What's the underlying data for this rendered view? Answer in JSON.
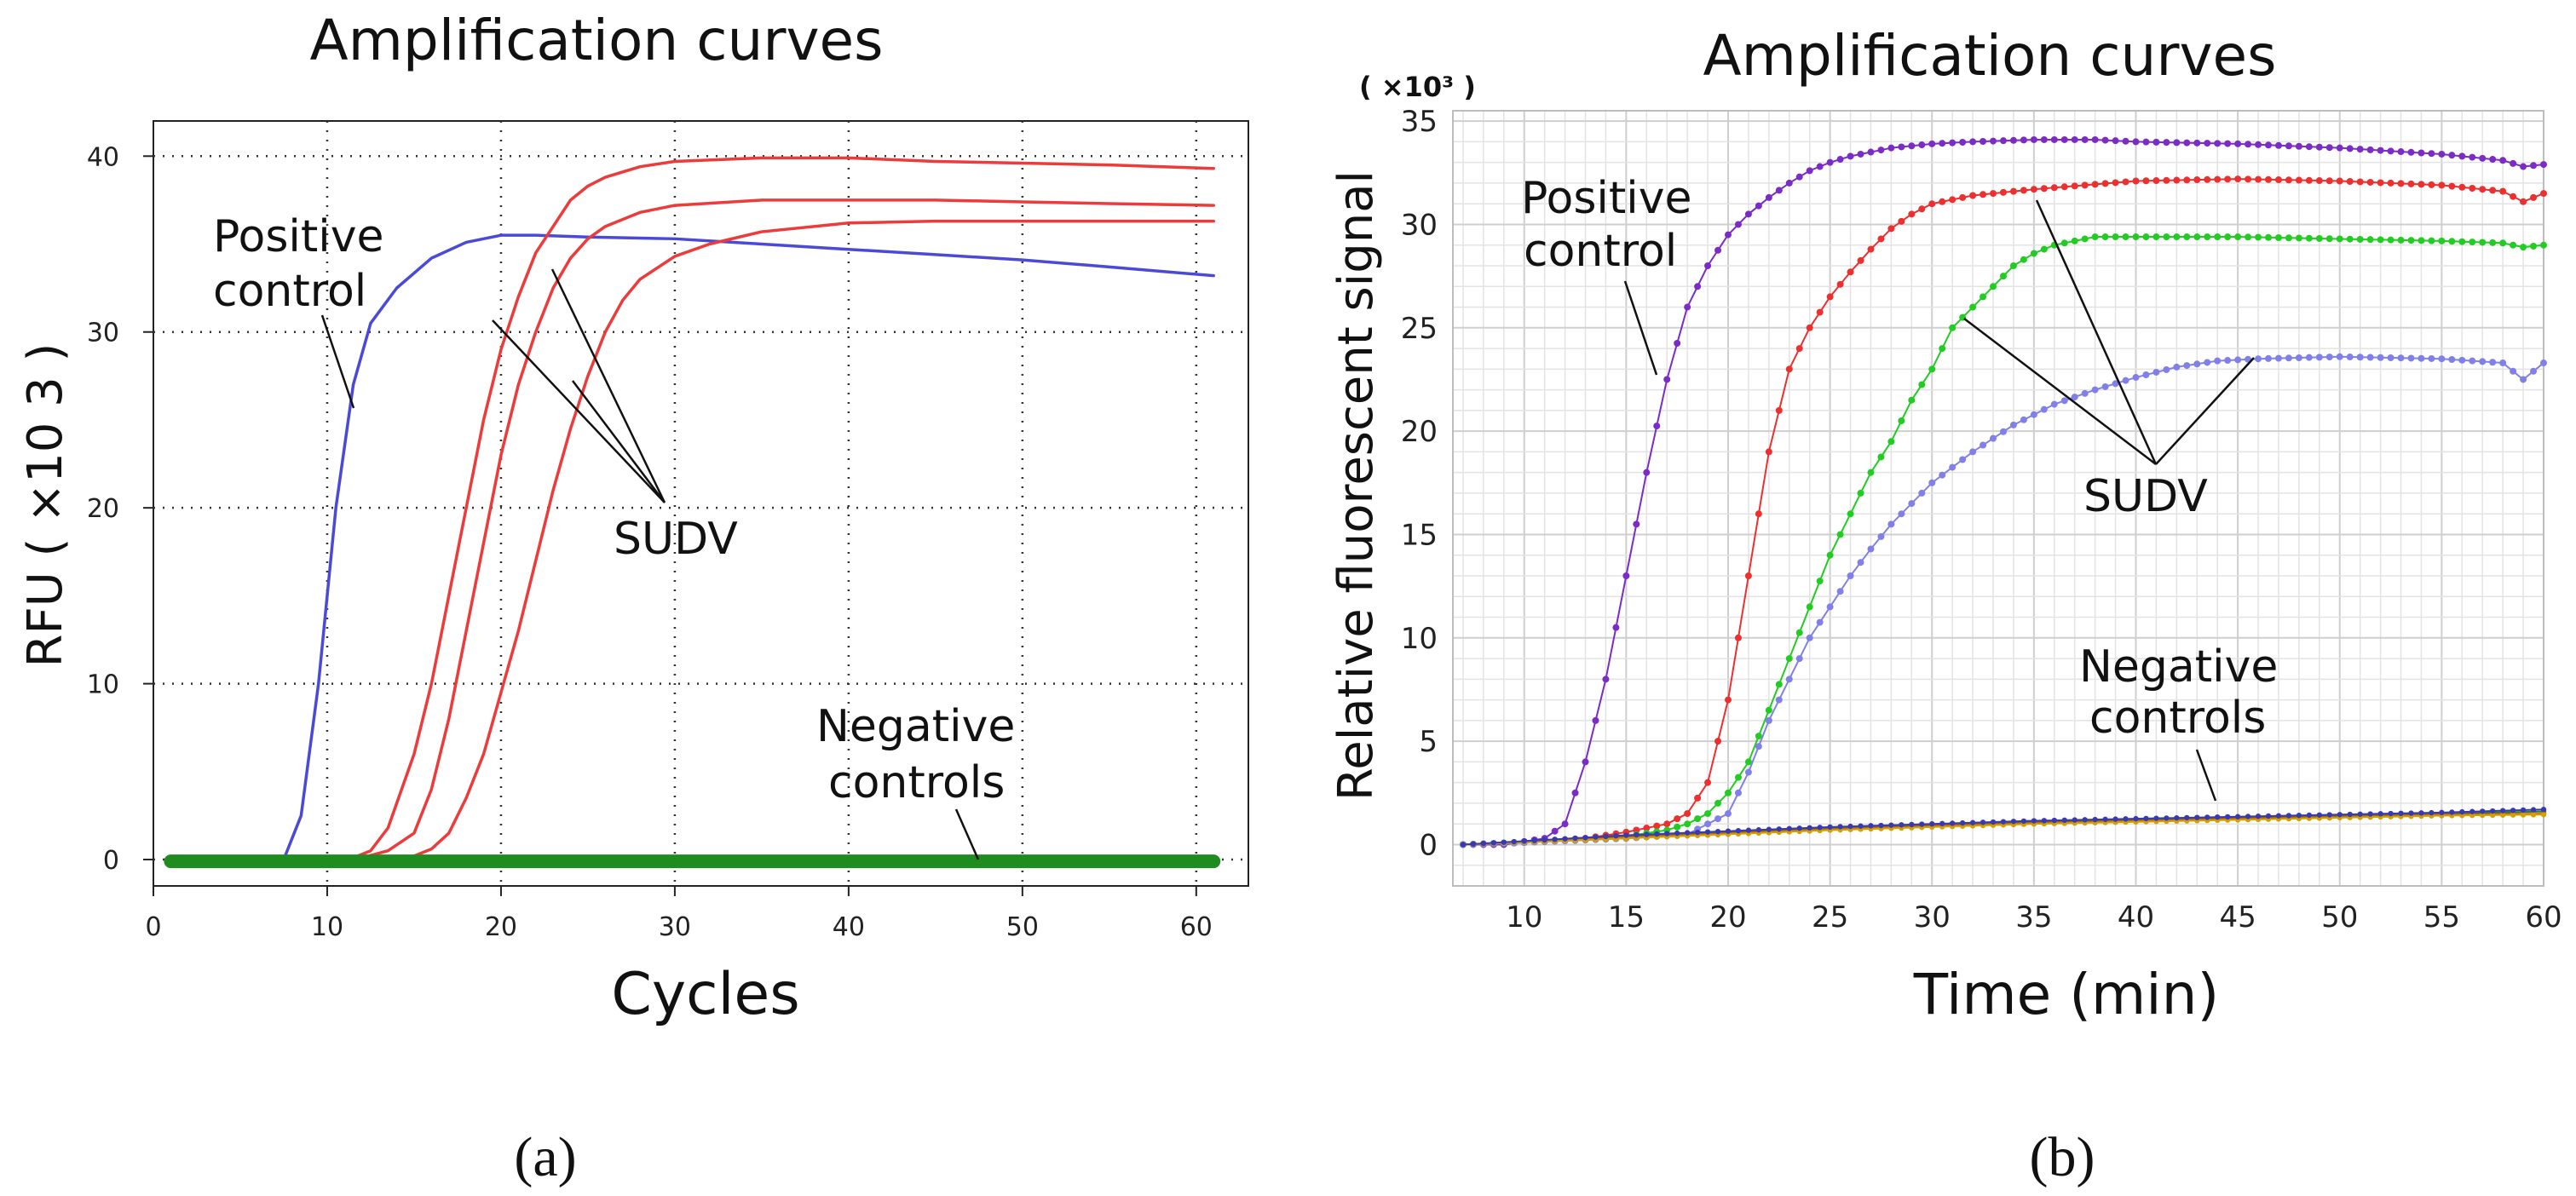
{
  "figure": {
    "panel_captions": [
      "(a)",
      "(b)"
    ]
  },
  "chart_data": [
    {
      "type": "line",
      "title": "Amplification curves",
      "xlabel": "Cycles",
      "ylabel": "RFU ( ×10 3 )",
      "xlim": [
        0,
        63
      ],
      "ylim": [
        -1.5,
        42
      ],
      "xticks": [
        0,
        10,
        20,
        30,
        40,
        50,
        60
      ],
      "yticks": [
        0,
        10,
        20,
        30,
        40
      ],
      "grid": true,
      "annotations": [
        {
          "lines": [
            "Positive",
            "control"
          ]
        },
        {
          "lines": [
            "SUDV"
          ]
        },
        {
          "lines": [
            "Negative",
            "controls"
          ]
        }
      ],
      "series": [
        {
          "color": "#4a4ad6",
          "x": [
            1,
            5,
            7.5,
            8.5,
            9.5,
            10.5,
            11.5,
            12.5,
            14,
            16,
            18,
            20,
            22,
            25,
            30,
            35,
            40,
            45,
            50,
            55,
            61
          ],
          "y": [
            0,
            0,
            0,
            2.5,
            10,
            20,
            27,
            30.5,
            32.5,
            34.2,
            35.1,
            35.5,
            35.5,
            35.4,
            35.3,
            35.0,
            34.7,
            34.4,
            34.1,
            33.7,
            33.2
          ]
        },
        {
          "color": "#ec3b3b",
          "x": [
            1,
            5,
            10,
            11.5,
            12.5,
            13.5,
            15,
            16,
            17,
            18,
            19,
            20,
            21,
            22,
            23,
            24,
            25,
            26,
            28,
            30,
            35,
            40,
            45,
            50,
            55,
            61
          ],
          "y": [
            0.1,
            0.1,
            0.1,
            0.1,
            0.5,
            1.8,
            6,
            10,
            15,
            20,
            25,
            29,
            32,
            34.5,
            36,
            37.5,
            38.3,
            38.8,
            39.4,
            39.7,
            39.9,
            39.9,
            39.7,
            39.6,
            39.5,
            39.3
          ]
        },
        {
          "color": "#ec3b3b",
          "x": [
            1,
            5,
            10,
            12,
            13.5,
            15,
            16,
            17,
            18,
            19,
            20,
            21,
            22,
            23,
            24,
            25,
            26,
            28,
            30,
            35,
            40,
            45,
            50,
            55,
            61
          ],
          "y": [
            0.1,
            0.1,
            0.1,
            0.1,
            0.5,
            1.5,
            4,
            8,
            13,
            18,
            23,
            27,
            30,
            32.5,
            34.2,
            35.3,
            36,
            36.8,
            37.2,
            37.5,
            37.5,
            37.5,
            37.4,
            37.3,
            37.2
          ]
        },
        {
          "color": "#ec3b3b",
          "x": [
            1,
            5,
            10,
            14,
            15,
            16,
            17,
            18,
            19,
            20,
            21,
            22,
            23,
            24,
            25,
            26,
            27,
            28,
            30,
            32,
            35,
            40,
            45,
            50,
            55,
            61
          ],
          "y": [
            0,
            0,
            0,
            0,
            0.2,
            0.6,
            1.5,
            3.5,
            6,
            9.5,
            13,
            17,
            21,
            24.5,
            27.5,
            30,
            31.8,
            33,
            34.3,
            35,
            35.7,
            36.2,
            36.3,
            36.3,
            36.3,
            36.3
          ]
        },
        {
          "color": "#1e8c1e",
          "x": [
            1,
            61
          ],
          "y": [
            -0.1,
            -0.1
          ]
        }
      ]
    },
    {
      "type": "line",
      "title": "Amplification curves",
      "xlabel": "Time (min)",
      "ylabel": "Relative fluorescent signal",
      "y_multiplier_label": "( ×10³ )",
      "xlim": [
        6.5,
        60
      ],
      "ylim": [
        -2,
        35.5
      ],
      "xticks": [
        10,
        15,
        20,
        25,
        30,
        35,
        40,
        45,
        50,
        55,
        60
      ],
      "yticks": [
        0,
        5,
        10,
        15,
        20,
        25,
        30,
        35
      ],
      "grid": true,
      "annotations": [
        {
          "lines": [
            "Positive",
            "control"
          ]
        },
        {
          "lines": [
            "SUDV"
          ]
        },
        {
          "lines": [
            "Negative",
            "controls"
          ]
        }
      ],
      "series": [
        {
          "color": "#7a2cc4",
          "x": [
            7,
            9,
            11,
            12,
            13,
            14,
            15,
            16,
            17,
            18,
            19,
            20,
            21,
            22,
            23,
            24,
            25,
            26,
            28,
            30,
            32,
            35,
            38,
            40,
            45,
            50,
            55,
            58,
            59,
            60
          ],
          "y": [
            0,
            0,
            0.3,
            1,
            4,
            8,
            13,
            18,
            22.5,
            26,
            28,
            29.5,
            30.5,
            31.3,
            32,
            32.6,
            33,
            33.3,
            33.7,
            33.9,
            34,
            34.1,
            34.1,
            34.0,
            33.9,
            33.7,
            33.4,
            33.1,
            32.8,
            32.9
          ]
        },
        {
          "color": "#ec2f2f",
          "x": [
            7,
            10,
            13,
            15,
            17,
            18,
            19,
            20,
            21,
            22,
            23,
            24,
            25,
            26,
            27,
            28,
            29,
            30,
            31,
            32,
            35,
            40,
            45,
            50,
            55,
            58,
            59,
            60
          ],
          "y": [
            0,
            0.1,
            0.3,
            0.6,
            1,
            1.5,
            3,
            7,
            13,
            19,
            23,
            25,
            26.5,
            27.7,
            28.8,
            29.8,
            30.5,
            31,
            31.2,
            31.4,
            31.7,
            32.1,
            32.2,
            32.1,
            31.9,
            31.6,
            31.1,
            31.5
          ]
        },
        {
          "color": "#22cc22",
          "x": [
            7,
            10,
            15,
            17,
            18,
            19,
            20,
            21,
            22,
            23,
            24,
            25,
            26,
            27,
            28,
            29,
            30,
            31,
            32,
            33,
            34,
            35,
            36,
            37,
            38,
            40,
            45,
            50,
            55,
            58,
            59,
            60
          ],
          "y": [
            0,
            0.1,
            0.4,
            0.7,
            1,
            1.5,
            2.5,
            4,
            6.5,
            9,
            11.5,
            14,
            16,
            18,
            19.5,
            21.5,
            23,
            25,
            26,
            27,
            28,
            28.6,
            29,
            29.2,
            29.4,
            29.4,
            29.4,
            29.3,
            29.2,
            29.1,
            28.9,
            29.0
          ]
        },
        {
          "color": "#8080e8",
          "x": [
            7,
            10,
            15,
            18,
            20,
            21,
            22,
            23,
            24,
            25,
            26,
            27,
            28,
            30,
            32,
            34,
            36,
            38,
            40,
            42,
            44,
            46,
            50,
            55,
            58,
            59,
            60
          ],
          "y": [
            0,
            0.1,
            0.3,
            0.5,
            1.5,
            3.5,
            6,
            8,
            10,
            11.5,
            13,
            14.3,
            15.5,
            17.5,
            19,
            20.3,
            21.3,
            22,
            22.6,
            23.1,
            23.4,
            23.5,
            23.6,
            23.5,
            23.3,
            22.5,
            23.3
          ]
        },
        {
          "color": "#2f7d2f",
          "x": [
            7,
            15,
            25,
            35,
            45,
            55,
            60
          ],
          "y": [
            0,
            0.4,
            0.8,
            1.1,
            1.3,
            1.5,
            1.6
          ]
        },
        {
          "color": "#c95c00",
          "x": [
            7,
            15,
            25,
            35,
            45,
            55,
            60
          ],
          "y": [
            0,
            0.35,
            0.75,
            1.05,
            1.25,
            1.45,
            1.5
          ]
        },
        {
          "color": "#d4a000",
          "x": [
            7,
            15,
            25,
            35,
            45,
            55,
            60
          ],
          "y": [
            0,
            0.3,
            0.7,
            1.0,
            1.2,
            1.4,
            1.45
          ]
        },
        {
          "color": "#3a3ab0",
          "x": [
            7,
            15,
            25,
            35,
            45,
            55,
            60
          ],
          "y": [
            0,
            0.45,
            0.85,
            1.15,
            1.35,
            1.55,
            1.7
          ]
        }
      ]
    }
  ]
}
